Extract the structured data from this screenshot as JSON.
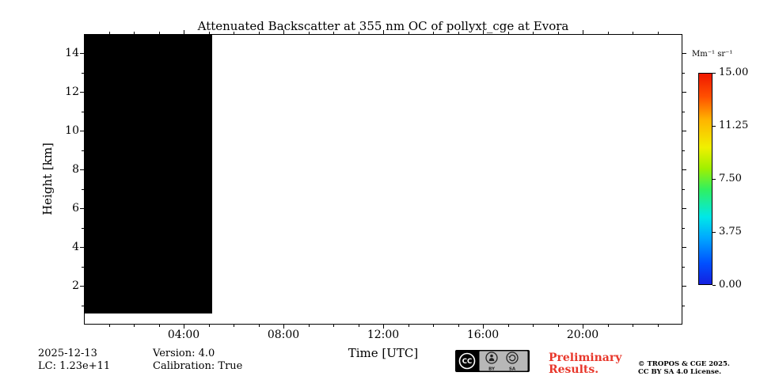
{
  "chart_data": {
    "type": "heatmap",
    "title": "Attenuated Backscatter at 355 nm OC of pollyxt_cge at Evora",
    "xlabel": "Time [UTC]",
    "ylabel": "Height [km]",
    "x_ticks": [
      "04:00",
      "08:00",
      "12:00",
      "16:00",
      "20:00"
    ],
    "x_range": [
      "00:00",
      "24:00"
    ],
    "y_ticks": [
      2,
      4,
      6,
      8,
      10,
      12,
      14
    ],
    "ylim": [
      0,
      15
    ],
    "grid": false,
    "legend_position": "none",
    "colorbar": {
      "label": "Mm⁻¹ sr⁻¹",
      "tick_labels": [
        "15.00",
        "11.25",
        "7.50",
        "3.75",
        "0.00"
      ],
      "vmin": 0,
      "vmax": 15,
      "colormap": "jet"
    },
    "data_coverage": {
      "note": "measured period rendered as solid black block (values at color-scale minimum); remainder of day blank/no data",
      "time_start": "00:00",
      "time_end": "05:06",
      "height_min_km": 0.65,
      "height_max_km": 15,
      "fill_color": "#000000"
    }
  },
  "footer": {
    "date": "2025-12-13",
    "lc": "LC: 1.23e+11",
    "version": "Version: 4.0",
    "calibration": "Calibration: True",
    "preliminary_line1": "Preliminary",
    "preliminary_line2": "Results.",
    "preliminary_color": "#e8372b",
    "copyright_line1": "© TROPOS & CGE 2025.",
    "copyright_line2": "CC BY SA 4.0 License.",
    "cc_badge": {
      "cc": "CC",
      "by": "BY",
      "sa": "SA"
    }
  }
}
